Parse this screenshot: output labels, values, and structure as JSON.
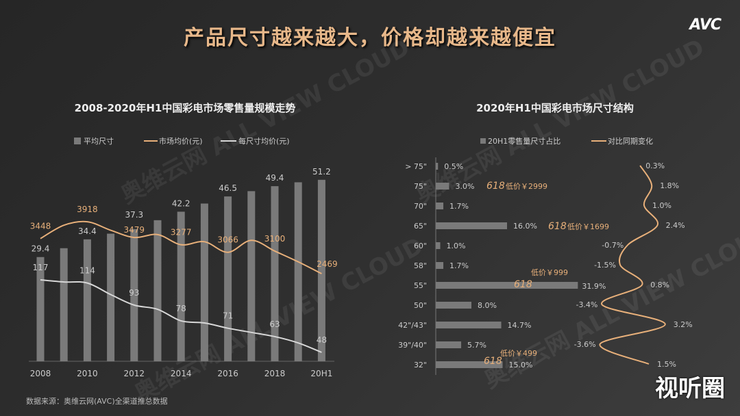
{
  "header": {
    "title": "产品尺寸越来越大，价格却越来越便宜",
    "logo": "AVC"
  },
  "footnote": "数据来源：奥维云网(AVC)全渠道推总数据",
  "brand_mark": "视听圈",
  "watermark": "奥维云网 ALL VIEW CLOUD",
  "colors": {
    "bar": "#7a7a7a",
    "orange": "#e8b07a",
    "white": "#d8d8d8",
    "title": "#e8b88a"
  },
  "chart_data": [
    {
      "type": "bar+line",
      "title": "2008-2020年H1中国彩电市场零售量规模走势",
      "legend": [
        "平均尺寸",
        "市场均价(元)",
        "每尺寸均价(元)"
      ],
      "legend_placement": "top",
      "categories": [
        "2008",
        "2009",
        "2010",
        "2011",
        "2012",
        "2013",
        "2014",
        "2015",
        "2016",
        "2017",
        "2018",
        "2019",
        "20H1"
      ],
      "tick_labels": [
        "2008",
        "2010",
        "2012",
        "2014",
        "2016",
        "2018",
        "20H1"
      ],
      "series": [
        {
          "name": "平均尺寸",
          "type": "bar",
          "values": [
            29.4,
            31.9,
            34.4,
            36.0,
            37.3,
            39.8,
            42.2,
            44.5,
            46.5,
            48.0,
            49.4,
            50.5,
            51.2
          ],
          "labels": [
            "29.4",
            null,
            "34.4",
            null,
            "37.3",
            null,
            "42.2",
            null,
            "46.5",
            null,
            "49.4",
            null,
            "51.2"
          ]
        },
        {
          "name": "市场均价(元)",
          "type": "line",
          "values": [
            3448,
            3820,
            3918,
            3680,
            3479,
            3560,
            3277,
            3360,
            3066,
            3400,
            3100,
            2800,
            2469
          ],
          "labels": [
            "3448",
            null,
            "3918",
            null,
            "3479",
            null,
            "3277",
            null,
            "3066",
            null,
            "3100",
            null,
            "2469"
          ]
        },
        {
          "name": "每尺寸均价(元)",
          "type": "line",
          "values": [
            117,
            115,
            114,
            103,
            93,
            89,
            78,
            76,
            71,
            67,
            63,
            57,
            48
          ],
          "labels": [
            "117",
            null,
            "114",
            null,
            "93",
            null,
            "78",
            null,
            "71",
            null,
            "63",
            null,
            "48"
          ]
        }
      ]
    },
    {
      "type": "horizontal-bar+line",
      "title": "2020年H1中国彩电市场尺寸结构",
      "legend": [
        "20H1零售量尺寸占比",
        "对比同期变化"
      ],
      "legend_placement": "top",
      "categories": [
        "> 75\"",
        "75\"",
        "70\"",
        "65\"",
        "60\"",
        "58\"",
        "55\"",
        "50\"",
        "42\"/43\"",
        "39\"/40\"",
        "32\""
      ],
      "series": [
        {
          "name": "20H1零售量尺寸占比",
          "type": "bar",
          "values": [
            0.5,
            3.0,
            1.7,
            16.0,
            1.0,
            1.7,
            31.9,
            8.0,
            14.7,
            5.7,
            15.0
          ],
          "labels": [
            "0.5%",
            "3.0%",
            "1.7%",
            "16.0%",
            "1.0%",
            "1.7%",
            "31.9%",
            "8.0%",
            "14.7%",
            "5.7%",
            "15.0%"
          ]
        },
        {
          "name": "对比同期变化",
          "type": "line",
          "values": [
            0.3,
            1.8,
            1.0,
            2.4,
            -0.7,
            -1.5,
            0.8,
            -3.4,
            3.2,
            -3.6,
            1.5
          ],
          "labels": [
            "0.3%",
            "1.8%",
            "1.0%",
            "2.4%",
            "-0.7%",
            "-1.5%",
            "0.8%",
            "-3.4%",
            "3.2%",
            "-3.6%",
            "1.5%"
          ]
        }
      ],
      "annotations": [
        {
          "category": "75\"",
          "badge": "618",
          "text": "低价￥2999"
        },
        {
          "category": "65\"",
          "badge": "618",
          "text": "低价￥1699"
        },
        {
          "category": "55\"",
          "badge": "618",
          "text": "低价￥999"
        },
        {
          "category": "32\"",
          "badge": "618",
          "text": "低价￥499"
        }
      ]
    }
  ]
}
